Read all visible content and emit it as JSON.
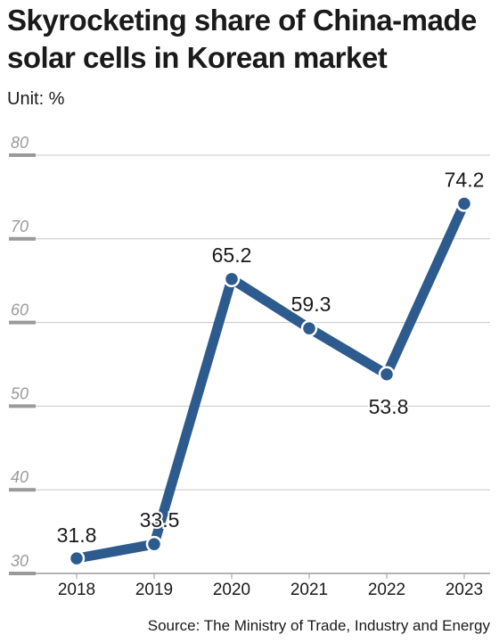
{
  "chart_data": {
    "type": "line",
    "title": "Skyrocketing share of China-made solar cells in Korean market",
    "unit_label": "Unit: %",
    "source": "Source: The Ministry of Trade, Industry and Energy",
    "x": [
      "2018",
      "2019",
      "2020",
      "2021",
      "2022",
      "2023"
    ],
    "series": [
      {
        "values": [
          31.8,
          33.5,
          65.2,
          59.3,
          53.8,
          74.2
        ]
      }
    ],
    "data_labels": [
      "31.8",
      "33.5",
      "65.2",
      "59.3",
      "53.8",
      "74.2"
    ],
    "ylim": [
      30,
      80
    ],
    "yticks": [
      "30",
      "40",
      "50",
      "60",
      "70",
      "80"
    ],
    "grid": true,
    "line_color": "#2d5b8e"
  }
}
